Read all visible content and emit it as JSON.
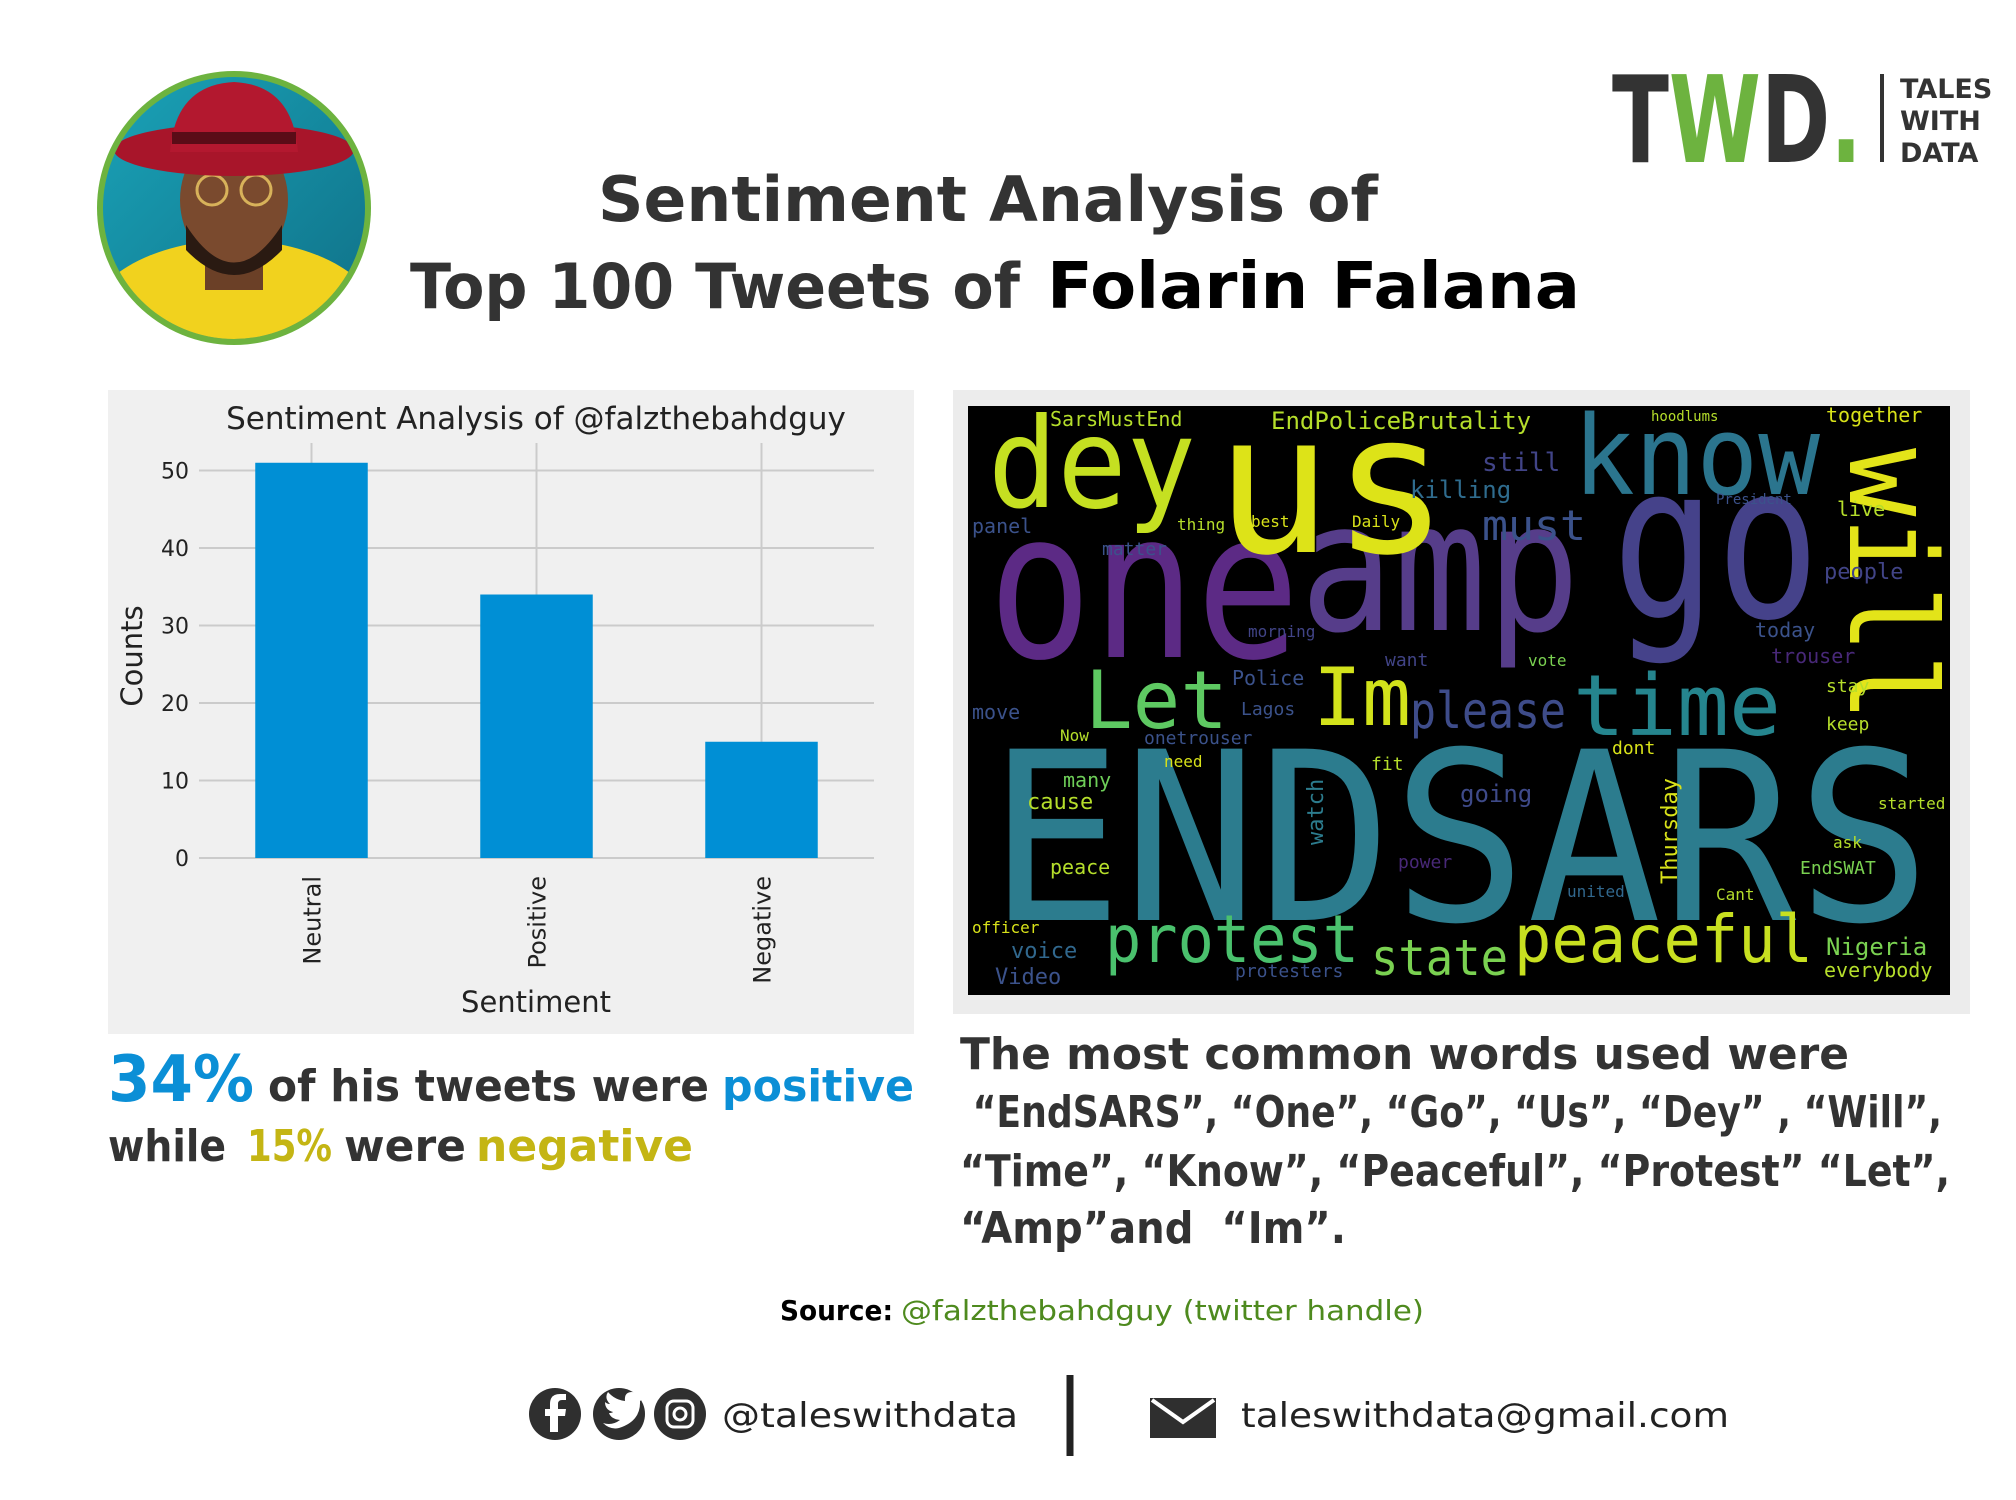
{
  "header": {
    "title_line1": "Sentiment Analysis of",
    "title_line2": "Top 100 Tweets of",
    "title_name": "Folarin Falana"
  },
  "logo": {
    "mark": [
      "T",
      "W",
      "D",
      "."
    ],
    "tagline": [
      "TALES",
      "WITH",
      "DATA"
    ]
  },
  "chart_data": {
    "type": "bar",
    "title": "Sentiment Analysis of @falzthebahdguy",
    "x_label": "Sentiment",
    "y_label": "Counts",
    "categories": [
      "Neutral",
      "Positive",
      "Negative"
    ],
    "values": [
      51,
      34,
      15
    ],
    "color": "#008fd5",
    "ylim": [
      0,
      53.55
    ],
    "yticks": [
      0,
      10,
      20,
      30,
      40,
      50
    ],
    "grid": true
  },
  "caption_left": {
    "pct_positive": "34%",
    "text1": "of his tweets were",
    "positive": "positive",
    "text2": "while",
    "pct_negative": "15%",
    "text3": "were",
    "negative": "negative"
  },
  "word_cloud": {
    "words": [
      "ENDSARS",
      "one",
      "amp",
      "go",
      "us",
      "dey",
      "know",
      "will",
      "Let",
      "Im",
      "time",
      "please",
      "protest",
      "state",
      "peaceful",
      "must",
      "killing",
      "still",
      "SarsMustEnd",
      "EndPoliceBrutality",
      "together",
      "Nigeria",
      "everybody",
      "Police",
      "Lagos",
      "going",
      "peace",
      "cause",
      "many",
      "Video",
      "voice",
      "officer",
      "protesters",
      "EndSWAT",
      "united",
      "today",
      "people",
      "trouser",
      "live",
      "stay",
      "keep",
      "panel",
      "move",
      "dont",
      "fit",
      "onetrouser",
      "Now",
      "need",
      "morning",
      "want",
      "vote",
      "thing",
      "best",
      "matter",
      "Daily",
      "hoodlums",
      "President",
      "Cant",
      "power",
      "ask",
      "started",
      "Thursday",
      "watch"
    ]
  },
  "caption_right": {
    "lines": [
      "The most common words used were",
      " “EndSARS”, “One”, “Go”, “Us”, “Dey” , “Will”,",
      "“Time”, “Know”, “Peaceful”, “Protest” “Let”,",
      "“Amp”and  “Im”."
    ]
  },
  "source": {
    "label": "Source:",
    "text": "@falzthebahdguy (twitter handle)"
  },
  "footer": {
    "handle": "@taleswithdata",
    "email": "taleswithdata@gmail.com"
  }
}
